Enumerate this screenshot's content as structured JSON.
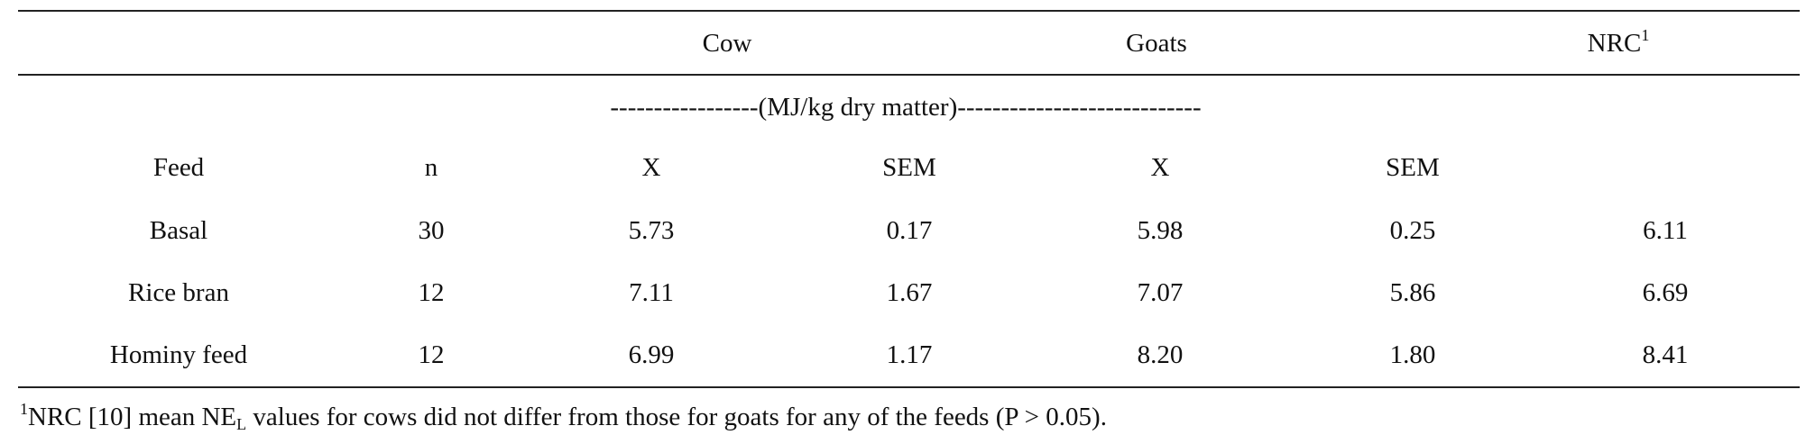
{
  "table": {
    "group_headers": {
      "cow": "Cow",
      "goats": "Goats",
      "nrc": "NRC",
      "nrc_sup": "1"
    },
    "units_row": "-----------------(MJ/kg dry matter)----------------------------",
    "columns": [
      "Feed",
      "n",
      "X",
      "SEM",
      "X",
      "SEM",
      ""
    ],
    "rows": [
      [
        "Basal",
        "30",
        "5.73",
        "0.17",
        "5.98",
        "0.25",
        "6.11"
      ],
      [
        "Rice bran",
        "12",
        "7.11",
        "1.67",
        "7.07",
        "5.86",
        "6.69"
      ],
      [
        "Hominy feed",
        "12",
        "6.99",
        "1.17",
        "8.20",
        "1.80",
        "8.41"
      ]
    ]
  },
  "footnote": {
    "marker": "1",
    "text_before_sub": "NRC [10] mean NE",
    "subscript": "L",
    "text_after_sub": " values for cows did not differ from those for goats for any of the feeds (P > 0.05)."
  }
}
